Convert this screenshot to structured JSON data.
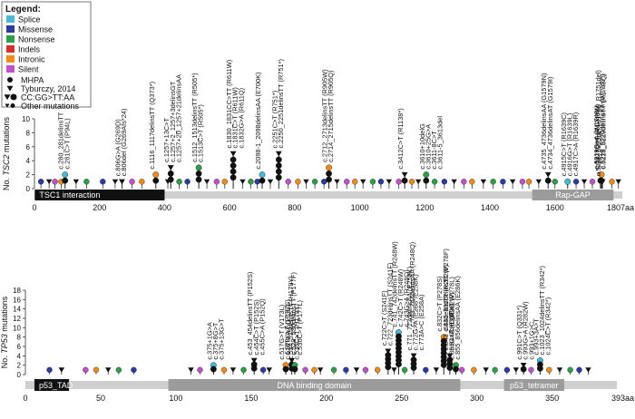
{
  "legend": {
    "title": "Legend:",
    "types": [
      {
        "label": "Splice",
        "color": "#4bb8d3"
      },
      {
        "label": "Missense",
        "color": "#2d3aa0"
      },
      {
        "label": "Nonsense",
        "color": "#2e9e48"
      },
      {
        "label": "Indels",
        "color": "#d62f2f"
      },
      {
        "label": "Intronic",
        "color": "#ef8c1d"
      },
      {
        "label": "Silent",
        "color": "#bf52c7"
      }
    ],
    "markers": [
      {
        "label": "MHPA",
        "symbol": "circle"
      },
      {
        "label": "Tyburczy, 2014",
        "symbol": "triangle"
      },
      {
        "label": "CC:GG>TT:AA",
        "symbol": "both"
      },
      {
        "label": "Other mutations",
        "symbol": "both-small"
      }
    ]
  },
  "chart_data": [
    {
      "type": "lollipop",
      "ylabel_gene": "TSC2",
      "ylabel_suffix": " mutations",
      "ylabel_prefix": "No. ",
      "ylim": [
        0,
        10
      ],
      "yticks": [
        0,
        2,
        4,
        6,
        8,
        10
      ],
      "xlim": [
        0,
        1807
      ],
      "xticks": [
        0,
        200,
        400,
        600,
        800,
        1000,
        1200,
        1400,
        1600
      ],
      "end_label": "1807aa",
      "domains": [
        {
          "name": "TSC1 interaction",
          "start": 1,
          "end": 400,
          "style": "dark"
        },
        {
          "name": "Rap-GAP",
          "start": 1530,
          "end": 1780,
          "style": "grey"
        }
      ],
      "annotations": [
        {
          "x": 94,
          "y": 2,
          "label": "c.280_281delinsTT"
        },
        {
          "x": 94,
          "y": 2,
          "label": "c.281C>T (P94L)"
        },
        {
          "x": 269,
          "y": 1,
          "label": "c.806G>A (G269D)"
        },
        {
          "x": 269,
          "y": 1,
          "label": "c.806del (G269Afs*24)"
        },
        {
          "x": 373,
          "y": 2,
          "label": "c.1116_1117delinsTT (Q373*)"
        },
        {
          "x": 419,
          "y": 3,
          "label": "c.1257+13C>T"
        },
        {
          "x": 419,
          "y": 3,
          "label": "c.1257+2_1257+3delinsGT"
        },
        {
          "x": 419,
          "y": 3,
          "label": "c.1257+20_1257+21delinsAA"
        },
        {
          "x": 505,
          "y": 3,
          "label": "c.1512_1513delinsTT (R505*)"
        },
        {
          "x": 505,
          "y": 3,
          "label": "c.1513C>T (R505*)"
        },
        {
          "x": 611,
          "y": 5,
          "label": "c.1830_1831CC>TT (R611W)"
        },
        {
          "x": 611,
          "y": 5,
          "label": "c.1831C>T (R611W)"
        },
        {
          "x": 611,
          "y": 5,
          "label": "c.1832G>A (R611Q)"
        },
        {
          "x": 700,
          "y": 2,
          "label": "c.2098-1_2098delinsAA (E700K)"
        },
        {
          "x": 751,
          "y": 5,
          "label": "c.2251C>T (R751*)"
        },
        {
          "x": 751,
          "y": 5,
          "label": "c.2250_2251delinsTT (R751*)"
        },
        {
          "x": 905,
          "y": 3,
          "label": "c.2712_2713delinsTT (R905W)"
        },
        {
          "x": 905,
          "y": 3,
          "label": "c.2714_2715delinsTT (R905Q)"
        },
        {
          "x": 1138,
          "y": 2,
          "label": "c.3412C>T (R1138*)"
        },
        {
          "x": 1204,
          "y": 2,
          "label": "c.3610+10delG"
        },
        {
          "x": 1204,
          "y": 2,
          "label": "c.3610+25G>A"
        },
        {
          "x": 1204,
          "y": 2,
          "label": "c.3611-8C>T"
        },
        {
          "x": 1204,
          "y": 2,
          "label": "c.3611-5_3613del"
        },
        {
          "x": 1579,
          "y": 2,
          "label": "c.4735_4736delinsAA (G1579N)"
        },
        {
          "x": 1579,
          "y": 2,
          "label": "c.4734_4736delinsAT (G1579I)"
        },
        {
          "x": 1639,
          "y": 1,
          "label": "c.4915C>T (R1639C)"
        },
        {
          "x": 1639,
          "y": 1,
          "label": "c.4916G>T (R1639L)"
        },
        {
          "x": 1639,
          "y": 1,
          "label": "c.4917C>A (R1639R)"
        },
        {
          "x": 1740,
          "y": 2,
          "label": "c.5219G>A (W1740*)"
        },
        {
          "x": 1740,
          "y": 2,
          "label": "c.5219_5220delinsAA (W1740*)"
        },
        {
          "x": 1743,
          "y": 2,
          "label": "c.5227C>T (R1743W)"
        },
        {
          "x": 1743,
          "y": 2,
          "label": "c.5228_5229delinsTT (R1743Q)"
        },
        {
          "x": 1746,
          "y": 1,
          "label": "c.5238_5255del (H1746_R1751del)"
        }
      ],
      "other_sites": [
        {
          "x": 20,
          "y": 1
        },
        {
          "x": 45,
          "y": 1
        },
        {
          "x": 63,
          "y": 1
        },
        {
          "x": 82,
          "y": 1
        },
        {
          "x": 128,
          "y": 1
        },
        {
          "x": 160,
          "y": 1
        },
        {
          "x": 210,
          "y": 1
        },
        {
          "x": 248,
          "y": 1
        },
        {
          "x": 300,
          "y": 1
        },
        {
          "x": 330,
          "y": 1
        },
        {
          "x": 410,
          "y": 1
        },
        {
          "x": 445,
          "y": 1
        },
        {
          "x": 470,
          "y": 1
        },
        {
          "x": 530,
          "y": 1
        },
        {
          "x": 560,
          "y": 1
        },
        {
          "x": 585,
          "y": 1
        },
        {
          "x": 640,
          "y": 1
        },
        {
          "x": 665,
          "y": 1
        },
        {
          "x": 685,
          "y": 1
        },
        {
          "x": 725,
          "y": 1
        },
        {
          "x": 780,
          "y": 1
        },
        {
          "x": 810,
          "y": 1
        },
        {
          "x": 835,
          "y": 1
        },
        {
          "x": 862,
          "y": 1
        },
        {
          "x": 890,
          "y": 1
        },
        {
          "x": 930,
          "y": 1
        },
        {
          "x": 960,
          "y": 1
        },
        {
          "x": 985,
          "y": 1
        },
        {
          "x": 1010,
          "y": 1
        },
        {
          "x": 1040,
          "y": 1
        },
        {
          "x": 1065,
          "y": 1
        },
        {
          "x": 1090,
          "y": 1
        },
        {
          "x": 1120,
          "y": 1
        },
        {
          "x": 1160,
          "y": 1
        },
        {
          "x": 1180,
          "y": 1
        },
        {
          "x": 1230,
          "y": 1
        },
        {
          "x": 1260,
          "y": 1
        },
        {
          "x": 1290,
          "y": 1
        },
        {
          "x": 1320,
          "y": 1
        },
        {
          "x": 1345,
          "y": 1
        },
        {
          "x": 1380,
          "y": 1
        },
        {
          "x": 1410,
          "y": 1
        },
        {
          "x": 1440,
          "y": 1
        },
        {
          "x": 1470,
          "y": 1
        },
        {
          "x": 1500,
          "y": 1
        },
        {
          "x": 1520,
          "y": 1
        },
        {
          "x": 1550,
          "y": 1
        },
        {
          "x": 1600,
          "y": 1
        },
        {
          "x": 1665,
          "y": 1
        },
        {
          "x": 1690,
          "y": 1
        },
        {
          "x": 1715,
          "y": 1
        },
        {
          "x": 1775,
          "y": 1
        },
        {
          "x": 1795,
          "y": 1
        }
      ]
    },
    {
      "type": "lollipop",
      "ylabel_gene": "TP53",
      "ylabel_suffix": " mutations",
      "ylabel_prefix": "No. ",
      "ylim": [
        0,
        18
      ],
      "yticks": [
        0,
        2,
        4,
        6,
        8,
        10,
        12,
        14,
        16,
        18
      ],
      "xlim": [
        0,
        393
      ],
      "xticks": [
        0,
        50,
        100,
        150,
        200,
        250,
        300,
        350
      ],
      "end_label": "393aa",
      "domains": [
        {
          "name": "p53_TAD",
          "start": 6,
          "end": 29,
          "style": "dark"
        },
        {
          "name": "DNA binding domain",
          "start": 95,
          "end": 289,
          "style": "grey"
        },
        {
          "name": "p53_tetramer",
          "start": 318,
          "end": 358,
          "style": "grey"
        }
      ],
      "annotations": [
        {
          "x": 125,
          "y": 2,
          "label": "c.375+1G>A"
        },
        {
          "x": 125,
          "y": 2,
          "label": "c.375+8G>T"
        },
        {
          "x": 125,
          "y": 2,
          "label": "c.375+13G>T"
        },
        {
          "x": 152,
          "y": 3,
          "label": "c.453_454delinsTT (P152S)"
        },
        {
          "x": 152,
          "y": 3,
          "label": "c.454C>T (P152S)"
        },
        {
          "x": 152,
          "y": 3,
          "label": "c.455C>A (P152Q)"
        },
        {
          "x": 173,
          "y": 2,
          "label": "c.517G>T (V173L)"
        },
        {
          "x": 173,
          "y": 2,
          "label": "c.518T>A (V173E)"
        },
        {
          "x": 177,
          "y": 3,
          "label": "c.529C>T (P177S)"
        },
        {
          "x": 177,
          "y": 3,
          "label": "c.529_530delinsTT (P177F)"
        },
        {
          "x": 177,
          "y": 3,
          "label": "c.530C>T (P177L)"
        },
        {
          "x": 179,
          "y": 2,
          "label": "c.534_535delinsTT (H179Y)"
        },
        {
          "x": 179,
          "y": 2,
          "label": "c.535C>T (H179Y)"
        },
        {
          "x": 241,
          "y": 5,
          "label": "c.722C>T (S241F)"
        },
        {
          "x": 241,
          "y": 5,
          "label": "c.722_723delinsTT (S241F)"
        },
        {
          "x": 248,
          "y": 9,
          "label": "c.741_742delinsTT (R248W)"
        },
        {
          "x": 248,
          "y": 9,
          "label": "c.742C>T (R248W)"
        },
        {
          "x": 248,
          "y": 9,
          "label": "c.743G>A (R248Q)"
        },
        {
          "x": 248,
          "y": 9,
          "label": "c.743_744delinsAA (R248Q)"
        },
        {
          "x": 258,
          "y": 4,
          "label": "c.771_772delinsAA (E258K)"
        },
        {
          "x": 258,
          "y": 4,
          "label": "c.772G>A (E258*/E258K)"
        },
        {
          "x": 258,
          "y": 4,
          "label": "c.773A>C (E258A)"
        },
        {
          "x": 278,
          "y": 8,
          "label": "c.832C>T (P278S)"
        },
        {
          "x": 278,
          "y": 8,
          "label": "c.832_833delinsTT (P278F)"
        },
        {
          "x": 278,
          "y": 8,
          "label": "c.833C>T (P278L)"
        },
        {
          "x": 282,
          "y": 4,
          "label": "c.843_844delinsTT (R282W)"
        },
        {
          "x": 282,
          "y": 4,
          "label": "c.844C>T (R282W)"
        },
        {
          "x": 286,
          "y": 2,
          "label": "c.856G>A (E286K)"
        },
        {
          "x": 286,
          "y": 2,
          "label": "c.855_856delinsAA (E286K)"
        },
        {
          "x": 331,
          "y": 2,
          "label": "c.991C>T (Q331*)"
        },
        {
          "x": 331,
          "y": 2,
          "label": "c.993G>A (R282W)"
        },
        {
          "x": 331,
          "y": 2,
          "label": "c.993+1G>C"
        },
        {
          "x": 342,
          "y": 3,
          "label": "c.993+3A>T"
        },
        {
          "x": 342,
          "y": 3,
          "label": "c.1023_1024delinsTT (R342*)"
        },
        {
          "x": 342,
          "y": 3,
          "label": "c.1024C>T (R342*)"
        }
      ],
      "other_sites": [
        {
          "x": 16,
          "y": 1
        },
        {
          "x": 24,
          "y": 1
        },
        {
          "x": 40,
          "y": 1
        },
        {
          "x": 47,
          "y": 1
        },
        {
          "x": 55,
          "y": 1
        },
        {
          "x": 62,
          "y": 1
        },
        {
          "x": 72,
          "y": 1
        },
        {
          "x": 110,
          "y": 1
        },
        {
          "x": 116,
          "y": 1
        },
        {
          "x": 132,
          "y": 1
        },
        {
          "x": 138,
          "y": 1
        },
        {
          "x": 145,
          "y": 1
        },
        {
          "x": 158,
          "y": 1
        },
        {
          "x": 162,
          "y": 1
        },
        {
          "x": 186,
          "y": 1
        },
        {
          "x": 192,
          "y": 1
        },
        {
          "x": 196,
          "y": 1
        },
        {
          "x": 205,
          "y": 1
        },
        {
          "x": 213,
          "y": 1
        },
        {
          "x": 220,
          "y": 1
        },
        {
          "x": 226,
          "y": 1
        },
        {
          "x": 234,
          "y": 1
        },
        {
          "x": 245,
          "y": 1
        },
        {
          "x": 252,
          "y": 1
        },
        {
          "x": 266,
          "y": 1
        },
        {
          "x": 273,
          "y": 1
        },
        {
          "x": 290,
          "y": 1
        },
        {
          "x": 298,
          "y": 1
        },
        {
          "x": 306,
          "y": 1
        },
        {
          "x": 312,
          "y": 1
        },
        {
          "x": 320,
          "y": 1
        },
        {
          "x": 326,
          "y": 1
        },
        {
          "x": 336,
          "y": 1
        },
        {
          "x": 348,
          "y": 1
        },
        {
          "x": 355,
          "y": 1
        },
        {
          "x": 362,
          "y": 1
        },
        {
          "x": 368,
          "y": 1
        },
        {
          "x": 374,
          "y": 1
        }
      ]
    }
  ]
}
